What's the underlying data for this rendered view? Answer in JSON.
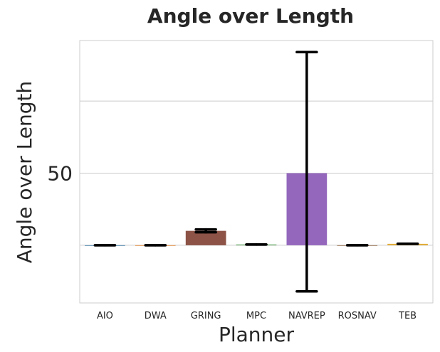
{
  "chart_data": {
    "type": "bar",
    "title": "Angle over Length",
    "xlabel": "Planner",
    "ylabel": "Angle over Length",
    "categories": [
      "AIO",
      "DWA",
      "GRING",
      "MPC",
      "NAVREP",
      "ROSNAV",
      "TEB"
    ],
    "values": [
      0,
      0,
      10,
      0.5,
      50,
      0,
      1
    ],
    "error_low": [
      0,
      0,
      9,
      0.5,
      -32,
      0,
      1
    ],
    "error_high": [
      0,
      0,
      11,
      0.5,
      134,
      0,
      1
    ],
    "colors": [
      "#3274a1",
      "#e1812c",
      "#8c5346",
      "#3a923a",
      "#9467bd",
      "#8c613c",
      "#e1ac35"
    ],
    "yticks": [
      50
    ],
    "ylim": [
      -40,
      142
    ],
    "gridlines": [
      0,
      50,
      100
    ],
    "grid": true,
    "legend": "none"
  }
}
